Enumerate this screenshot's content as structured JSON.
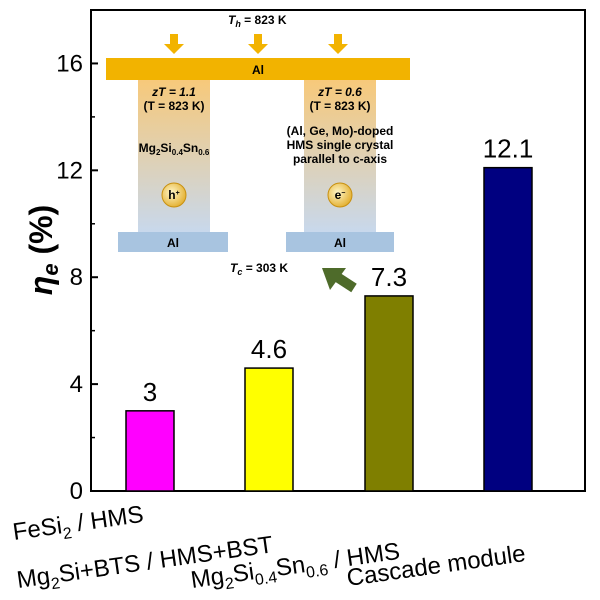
{
  "chart_data": {
    "type": "bar",
    "title": "",
    "xlabel": "",
    "ylabel": "η_e (%)",
    "ylabel_main": "η",
    "ylabel_sub": "e",
    "ylabel_unit": " (%)",
    "ylim": [
      0,
      18
    ],
    "yticks": [
      0,
      4,
      8,
      12,
      16
    ],
    "categories": [
      "FeSi2 / HMS",
      "Mg2Si+BTS / HMS+BST",
      "Mg2Si0.4Sn0.6 / HMS",
      "Cascade module"
    ],
    "values": [
      3,
      4.6,
      7.3,
      12.1
    ],
    "value_labels": [
      "3",
      "4.6",
      "7.3",
      "12.1"
    ],
    "colors": [
      "#ff00ff",
      "#ffff00",
      "#7f7f00",
      "#000080"
    ],
    "grid": false,
    "legend": "none"
  },
  "inset": {
    "th_label": "T",
    "th_sub": "h",
    "th_value": " = 823 K",
    "tc_label": "T",
    "tc_sub": "c",
    "tc_value": " = 303 K",
    "al_top": "Al",
    "al_left": "Al",
    "al_right": "Al",
    "left_leg": {
      "zt_line": "zT = 1.1",
      "temp_line": "(T = 823 K)",
      "material": "Mg2Si0.4Sn0.6",
      "carrier": "h+"
    },
    "right_leg": {
      "zt_line": "zT = 0.6",
      "temp_line": "(T = 823 K)",
      "desc1": "(Al, Ge, Mo)-doped",
      "desc2": "HMS single crystal",
      "desc3": "parallel to c-axis",
      "carrier": "e-"
    }
  },
  "colors": {
    "al_top": "#f2b300",
    "al_bottom": "#a8c4e0",
    "leg_top": "#f7c97a",
    "leg_bottom": "#c8d8ec",
    "arrow": "#f2b300",
    "green_arrow": "#4e6b2a"
  }
}
